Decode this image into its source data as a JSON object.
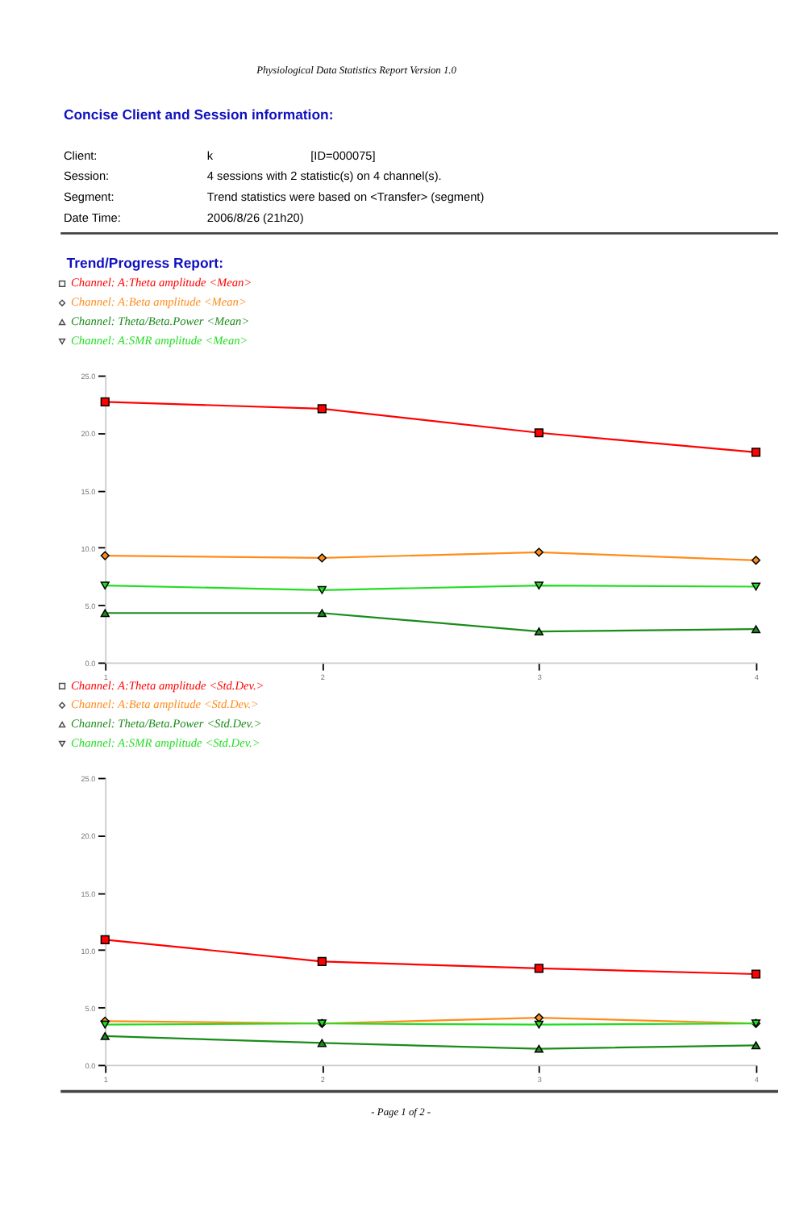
{
  "chart_data": [
    {
      "type": "line",
      "title": "Physiological Data Statistics Report Version 1.0",
      "annotations": [
        "Concise Client and Session information:",
        "Client:",
        "k",
        "[ID=000075]",
        "Session:",
        "4 sessions with 2 statistic(s) on 4 channel(s).",
        "Segment:",
        "Trend statistics were based on <Transfer> (segment)",
        "Date  Time:",
        "2006/8/26   (21h20)",
        "Trend/Progress Report:"
      ],
      "x": [
        1,
        2,
        3,
        4
      ],
      "series": [
        {
          "name": "Channel: A:Theta amplitude <Mean>",
          "color": "#ff0000",
          "marker": "square",
          "values": [
            22.7,
            22.1,
            20.0,
            18.3
          ]
        },
        {
          "name": "Channel: A:Beta amplitude <Mean>",
          "color": "#ff8c1a",
          "marker": "diamond",
          "values": [
            9.3,
            9.1,
            9.6,
            8.9
          ]
        },
        {
          "name": "Channel: Theta/Beta.Power <Mean>",
          "color": "#1a8c1a",
          "marker": "triangle",
          "values": [
            4.3,
            4.3,
            2.7,
            2.9
          ]
        },
        {
          "name": "Channel: A:SMR amplitude <Mean>",
          "color": "#22dd22",
          "marker": "triangle-down",
          "values": [
            6.7,
            6.3,
            6.7,
            6.6
          ]
        }
      ],
      "xlim": [
        1,
        4
      ],
      "ylim": [
        0,
        25
      ],
      "xticks": [
        1,
        2,
        3,
        4
      ],
      "yticks": [
        {
          "value": 0,
          "label": "0.0"
        },
        {
          "value": 5,
          "label": "5.0"
        },
        {
          "value": 10,
          "label": "10.0"
        },
        {
          "value": 15,
          "label": "15.0"
        },
        {
          "value": 20,
          "label": "20.0"
        },
        {
          "value": 25,
          "label": "25.0"
        }
      ],
      "grid": false,
      "legend": "top left",
      "line_style": "solid"
    },
    {
      "type": "line",
      "annotations": [
        "- Page 1 of 2 -"
      ],
      "x": [
        1,
        2,
        3,
        4
      ],
      "series": [
        {
          "name": "Channel: A:Theta amplitude <Std.Dev.>",
          "color": "#ff0000",
          "marker": "square",
          "values": [
            10.9,
            9.0,
            8.4,
            7.9
          ]
        },
        {
          "name": "Channel: A:Beta amplitude <Std.Dev.>",
          "color": "#ff8c1a",
          "marker": "diamond",
          "values": [
            3.8,
            3.6,
            4.1,
            3.6
          ]
        },
        {
          "name": "Channel: Theta/Beta.Power <Std.Dev.>",
          "color": "#1a8c1a",
          "marker": "triangle",
          "values": [
            2.5,
            1.9,
            1.4,
            1.7
          ]
        },
        {
          "name": "Channel: A:SMR amplitude <Std.Dev.>",
          "color": "#22dd22",
          "marker": "triangle-down",
          "values": [
            3.5,
            3.6,
            3.5,
            3.6
          ]
        }
      ],
      "xlim": [
        1,
        4
      ],
      "ylim": [
        0,
        25
      ],
      "xticks": [
        1,
        2,
        3,
        4
      ],
      "yticks": [
        {
          "value": 0,
          "label": "0.0"
        },
        {
          "value": 5,
          "label": "5.0"
        },
        {
          "value": 10,
          "label": "10.0"
        },
        {
          "value": 15,
          "label": "15.0"
        },
        {
          "value": 20,
          "label": "20.0"
        },
        {
          "value": 25,
          "label": "25.0"
        }
      ],
      "grid": false,
      "legend": "top left",
      "line_style": "solid"
    }
  ]
}
